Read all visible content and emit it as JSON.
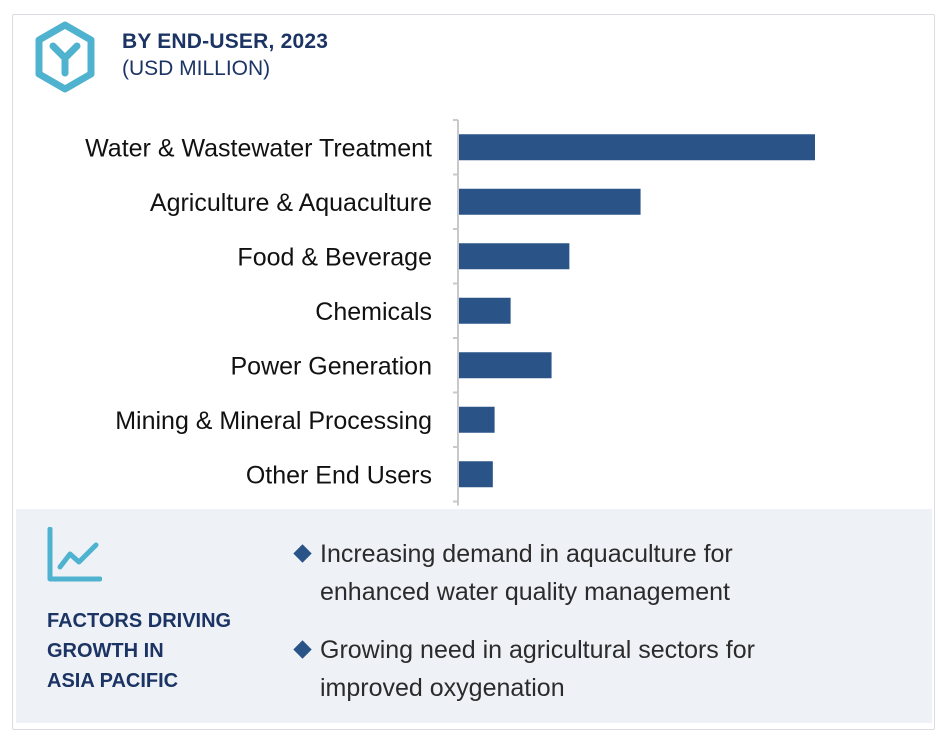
{
  "header": {
    "icon": "hexagon-y-logo-icon",
    "title": "BY END-USER, 2023",
    "subtitle": "(USD MILLION)"
  },
  "chart_data": {
    "type": "bar",
    "orientation": "horizontal",
    "title": "BY END-USER, 2023",
    "subtitle": "(USD MILLION)",
    "categories": [
      "Water & Wastewater Treatment",
      "Agriculture & Aquaculture",
      "Food & Beverage",
      "Chemicals",
      "Power Generation",
      "Mining & Mineral Processing",
      "Other End Users"
    ],
    "values": [
      100,
      51,
      31,
      14.5,
      26,
      10,
      9.5
    ],
    "value_note": "relative bar lengths (no values printed)",
    "xlim": [
      0,
      100
    ],
    "bar_color": "#2a5487",
    "axis_color": "#c9c9c9",
    "grid": false,
    "legend": "none"
  },
  "factors": {
    "icon": "line-chart-trend-icon",
    "title_lines": [
      "FACTORS DRIVING",
      "GROWTH IN",
      "ASIA PACIFIC"
    ],
    "bullets": [
      [
        "Increasing demand in aquaculture for",
        "enhanced water quality management"
      ],
      [
        "Growing need in agricultural sectors for",
        "improved oxygenation"
      ]
    ],
    "bullet_color": "#2a5487",
    "panel_color": "#eef2f7"
  }
}
